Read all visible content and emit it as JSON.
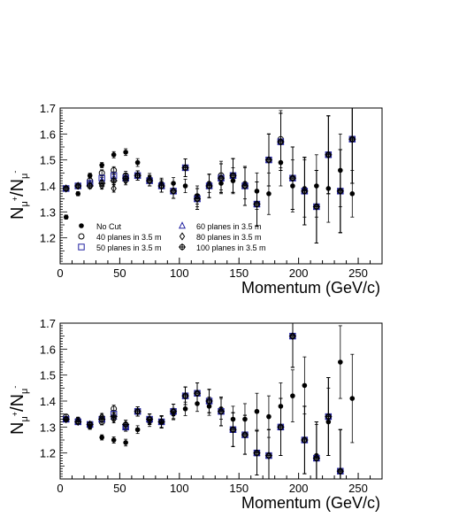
{
  "chart_data": [
    {
      "type": "scatter",
      "xlabel": "Momentum (GeV/c)",
      "ylabel_main": "N",
      "ylabel_sub1": "μ",
      "ylabel_sup": "+",
      "ylabel_slash": "/N",
      "ylabel_sub2": "μ",
      "ylabel_sup2": "-",
      "xlim": [
        0,
        270
      ],
      "ylim": [
        1.1,
        1.7
      ],
      "xticks": [
        0,
        50,
        100,
        150,
        200,
        250
      ],
      "yticks": [
        1.2,
        1.3,
        1.4,
        1.5,
        1.6,
        1.7
      ],
      "xtick_labels": [
        "0",
        "50",
        "100",
        "150",
        "200",
        "250"
      ],
      "ytick_labels": [
        "1.2",
        "1.3",
        "1.4",
        "1.5",
        "1.6",
        "1.7"
      ],
      "legend": [
        {
          "label": "No Cut",
          "marker": "dot"
        },
        {
          "label": "40 planes in 3.5 m",
          "marker": "circle"
        },
        {
          "label": "50 planes in 3.5 m",
          "marker": "square"
        },
        {
          "label": "60 planes in 3.5 m",
          "marker": "triangle"
        },
        {
          "label": "80 planes in 3.5 m",
          "marker": "diamond"
        },
        {
          "label": "100 planes in 3.5 m",
          "marker": "cross"
        }
      ],
      "series": [
        {
          "marker": "dot",
          "color": "#000000",
          "x": [
            5,
            15,
            25,
            35,
            45,
            55,
            65,
            75,
            85,
            95,
            105,
            115,
            125,
            135,
            145,
            155,
            165,
            175,
            185,
            195,
            205,
            215,
            225,
            235,
            245
          ],
          "y": [
            1.28,
            1.37,
            1.44,
            1.48,
            1.52,
            1.53,
            1.49,
            1.43,
            1.41,
            1.41,
            1.4,
            1.36,
            1.41,
            1.41,
            1.42,
            1.41,
            1.38,
            1.37,
            1.49,
            1.4,
            1.39,
            1.4,
            1.39,
            1.46,
            1.37
          ],
          "err": [
            0.008,
            0.008,
            0.009,
            0.01,
            0.012,
            0.013,
            0.015,
            0.018,
            0.02,
            0.022,
            0.026,
            0.03,
            0.035,
            0.04,
            0.05,
            0.06,
            0.07,
            0.08,
            0.09,
            0.1,
            0.11,
            0.12,
            0.13,
            0.14,
            0.09
          ]
        },
        {
          "marker": "circle",
          "color": "#000000",
          "x": [
            5,
            15,
            25,
            35,
            45,
            55,
            65,
            75,
            85,
            95,
            105,
            115,
            125,
            135,
            145,
            155,
            165,
            175,
            185,
            195,
            205,
            215,
            225,
            235,
            245
          ],
          "y": [
            1.39,
            1.4,
            1.42,
            1.45,
            1.46,
            1.44,
            1.44,
            1.42,
            1.4,
            1.38,
            1.47,
            1.36,
            1.4,
            1.44,
            1.44,
            1.4,
            1.33,
            1.5,
            1.58,
            1.43,
            1.38,
            1.32,
            1.52,
            1.38,
            1.58
          ],
          "err": [
            0.008,
            0.008,
            0.01,
            0.012,
            0.014,
            0.016,
            0.018,
            0.02,
            0.024,
            0.028,
            0.034,
            0.04,
            0.045,
            0.055,
            0.065,
            0.075,
            0.085,
            0.1,
            0.11,
            0.12,
            0.13,
            0.14,
            0.15,
            0.16,
            0.17
          ]
        },
        {
          "marker": "square",
          "color": "#1f1f9f",
          "x": [
            5,
            15,
            25,
            35,
            45,
            55,
            65,
            75,
            85,
            95,
            105,
            115,
            125,
            135,
            145,
            155,
            165,
            175,
            185,
            195,
            205,
            215,
            225,
            235,
            245
          ],
          "y": [
            1.39,
            1.4,
            1.41,
            1.43,
            1.44,
            1.43,
            1.44,
            1.42,
            1.4,
            1.38,
            1.47,
            1.35,
            1.4,
            1.43,
            1.44,
            1.4,
            1.33,
            1.5,
            1.57,
            1.43,
            1.38,
            1.32,
            1.52,
            1.38,
            1.58
          ],
          "err": [
            0.008,
            0.008,
            0.01,
            0.012,
            0.014,
            0.016,
            0.018,
            0.02,
            0.024,
            0.028,
            0.034,
            0.04,
            0.045,
            0.055,
            0.065,
            0.075,
            0.085,
            0.1,
            0.11,
            0.12,
            0.13,
            0.14,
            0.15,
            0.16,
            0.17
          ]
        },
        {
          "marker": "triangle",
          "color": "#1f1f9f",
          "x": [
            5,
            15,
            25,
            35,
            45,
            55,
            65,
            75,
            85,
            95,
            105,
            115,
            125,
            135,
            145,
            155,
            165,
            175,
            185,
            195,
            205,
            215,
            225,
            235,
            245
          ],
          "y": [
            1.39,
            1.4,
            1.41,
            1.42,
            1.43,
            1.43,
            1.44,
            1.42,
            1.4,
            1.38,
            1.47,
            1.35,
            1.4,
            1.43,
            1.44,
            1.4,
            1.33,
            1.5,
            1.57,
            1.43,
            1.38,
            1.32,
            1.52,
            1.38,
            1.58
          ],
          "err": [
            0.008,
            0.008,
            0.01,
            0.012,
            0.014,
            0.016,
            0.018,
            0.02,
            0.024,
            0.028,
            0.034,
            0.04,
            0.045,
            0.055,
            0.065,
            0.075,
            0.085,
            0.1,
            0.11,
            0.12,
            0.13,
            0.14,
            0.15,
            0.16,
            0.17
          ]
        },
        {
          "marker": "diamond",
          "color": "#000000",
          "x": [
            5,
            15,
            25,
            35,
            45,
            55,
            65,
            75,
            85,
            95,
            105,
            115,
            125,
            135,
            145,
            155,
            165,
            175,
            185,
            195,
            205,
            215,
            225,
            235,
            245
          ],
          "y": [
            1.39,
            1.4,
            1.4,
            1.4,
            1.39,
            1.42,
            1.44,
            1.42,
            1.4,
            1.38,
            1.47,
            1.35,
            1.4,
            1.43,
            1.44,
            1.4,
            1.33,
            1.5,
            1.57,
            1.43,
            1.38,
            1.32,
            1.52,
            1.38,
            1.58
          ],
          "err": [
            0.008,
            0.008,
            0.01,
            0.012,
            0.014,
            0.016,
            0.018,
            0.02,
            0.024,
            0.028,
            0.034,
            0.04,
            0.045,
            0.055,
            0.065,
            0.075,
            0.085,
            0.1,
            0.11,
            0.12,
            0.13,
            0.14,
            0.15,
            0.16,
            0.17
          ]
        },
        {
          "marker": "cross",
          "color": "#000000",
          "x": [
            5,
            15,
            25,
            35,
            45,
            55,
            65,
            75,
            85,
            95,
            105,
            115,
            125,
            135,
            145,
            155,
            165,
            175,
            185,
            195,
            205,
            215,
            225,
            235,
            245
          ],
          "y": [
            1.39,
            1.4,
            1.4,
            1.41,
            1.42,
            1.43,
            1.44,
            1.42,
            1.4,
            1.38,
            1.47,
            1.35,
            1.4,
            1.43,
            1.44,
            1.4,
            1.33,
            1.5,
            1.57,
            1.43,
            1.38,
            1.32,
            1.52,
            1.38,
            1.58
          ],
          "err": [
            0.008,
            0.008,
            0.01,
            0.012,
            0.014,
            0.016,
            0.018,
            0.02,
            0.024,
            0.028,
            0.034,
            0.04,
            0.045,
            0.055,
            0.065,
            0.075,
            0.085,
            0.1,
            0.11,
            0.12,
            0.13,
            0.14,
            0.15,
            0.16,
            0.17
          ]
        }
      ]
    },
    {
      "type": "scatter",
      "xlabel": "Momentum (GeV/c)",
      "ylabel_main": "N",
      "ylabel_sub1": "μ",
      "ylabel_sup": "+",
      "ylabel_slash": "/N",
      "ylabel_sub2": "μ",
      "ylabel_sup2": "-",
      "xlim": [
        0,
        270
      ],
      "ylim": [
        1.1,
        1.7
      ],
      "xticks": [
        0,
        50,
        100,
        150,
        200,
        250
      ],
      "yticks": [
        1.2,
        1.3,
        1.4,
        1.5,
        1.6,
        1.7
      ],
      "xtick_labels": [
        "0",
        "50",
        "100",
        "150",
        "200",
        "250"
      ],
      "ytick_labels": [
        "1.2",
        "1.3",
        "1.4",
        "1.5",
        "1.6",
        "1.7"
      ],
      "series": [
        {
          "marker": "dot",
          "color": "#000000",
          "x": [
            5,
            15,
            25,
            35,
            45,
            55,
            65,
            75,
            85,
            95,
            105,
            115,
            125,
            135,
            145,
            155,
            165,
            175,
            185,
            195,
            205,
            215,
            225,
            235,
            245
          ],
          "y": [
            1.33,
            1.33,
            1.3,
            1.26,
            1.25,
            1.24,
            1.29,
            1.32,
            1.32,
            1.35,
            1.37,
            1.39,
            1.38,
            1.37,
            1.33,
            1.33,
            1.36,
            1.34,
            1.38,
            1.42,
            1.46,
            1.19,
            1.32,
            1.55,
            1.41
          ],
          "err": [
            0.008,
            0.008,
            0.009,
            0.01,
            0.012,
            0.013,
            0.015,
            0.018,
            0.02,
            0.022,
            0.026,
            0.03,
            0.035,
            0.04,
            0.05,
            0.06,
            0.07,
            0.08,
            0.09,
            0.1,
            0.11,
            0.12,
            0.13,
            0.14,
            0.17
          ]
        },
        {
          "marker": "circle",
          "color": "#000000",
          "x": [
            5,
            15,
            25,
            35,
            45,
            55,
            65,
            75,
            85,
            95,
            105,
            115,
            125,
            135,
            145,
            155,
            165,
            175,
            185,
            195,
            205,
            215,
            225,
            235
          ],
          "y": [
            1.34,
            1.32,
            1.31,
            1.32,
            1.37,
            1.3,
            1.36,
            1.33,
            1.32,
            1.36,
            1.42,
            1.43,
            1.4,
            1.36,
            1.29,
            1.27,
            1.2,
            1.19,
            1.3,
            1.65,
            1.25,
            1.18,
            1.34,
            1.13
          ],
          "err": [
            0.008,
            0.008,
            0.01,
            0.012,
            0.014,
            0.016,
            0.018,
            0.02,
            0.024,
            0.028,
            0.034,
            0.04,
            0.045,
            0.055,
            0.065,
            0.075,
            0.085,
            0.1,
            0.11,
            0.12,
            0.13,
            0.14,
            0.15,
            0.16
          ]
        },
        {
          "marker": "square",
          "color": "#1f1f9f",
          "x": [
            5,
            15,
            25,
            35,
            45,
            55,
            65,
            75,
            85,
            95,
            105,
            115,
            125,
            135,
            145,
            155,
            165,
            175,
            185,
            195,
            205,
            215,
            225,
            235
          ],
          "y": [
            1.33,
            1.32,
            1.31,
            1.33,
            1.35,
            1.3,
            1.36,
            1.33,
            1.32,
            1.36,
            1.42,
            1.43,
            1.4,
            1.36,
            1.29,
            1.27,
            1.2,
            1.19,
            1.3,
            1.65,
            1.25,
            1.18,
            1.34,
            1.13
          ],
          "err": [
            0.008,
            0.008,
            0.01,
            0.012,
            0.014,
            0.016,
            0.018,
            0.02,
            0.024,
            0.028,
            0.034,
            0.04,
            0.045,
            0.055,
            0.065,
            0.075,
            0.085,
            0.1,
            0.11,
            0.12,
            0.13,
            0.14,
            0.15,
            0.16
          ]
        },
        {
          "marker": "triangle",
          "color": "#1f1f9f",
          "x": [
            5,
            15,
            25,
            35,
            45,
            55,
            65,
            75,
            85,
            95,
            105,
            115,
            125,
            135,
            145,
            155,
            165,
            175,
            185,
            195,
            205,
            215,
            225,
            235
          ],
          "y": [
            1.33,
            1.32,
            1.31,
            1.33,
            1.34,
            1.3,
            1.36,
            1.33,
            1.32,
            1.36,
            1.42,
            1.43,
            1.4,
            1.36,
            1.29,
            1.27,
            1.2,
            1.19,
            1.3,
            1.65,
            1.25,
            1.18,
            1.34,
            1.13
          ],
          "err": [
            0.008,
            0.008,
            0.01,
            0.012,
            0.014,
            0.016,
            0.018,
            0.02,
            0.024,
            0.028,
            0.034,
            0.04,
            0.045,
            0.055,
            0.065,
            0.075,
            0.085,
            0.1,
            0.11,
            0.12,
            0.13,
            0.14,
            0.15,
            0.16
          ]
        },
        {
          "marker": "diamond",
          "color": "#000000",
          "x": [
            5,
            15,
            25,
            35,
            45,
            55,
            65,
            75,
            85,
            95,
            105,
            115,
            125,
            135,
            145,
            155,
            165,
            175,
            185,
            195,
            205,
            215,
            225,
            235
          ],
          "y": [
            1.33,
            1.32,
            1.31,
            1.34,
            1.33,
            1.31,
            1.36,
            1.33,
            1.32,
            1.36,
            1.42,
            1.43,
            1.4,
            1.36,
            1.29,
            1.27,
            1.2,
            1.19,
            1.3,
            1.65,
            1.25,
            1.18,
            1.34,
            1.13
          ],
          "err": [
            0.008,
            0.008,
            0.01,
            0.012,
            0.014,
            0.016,
            0.018,
            0.02,
            0.024,
            0.028,
            0.034,
            0.04,
            0.045,
            0.055,
            0.065,
            0.075,
            0.085,
            0.1,
            0.11,
            0.12,
            0.13,
            0.14,
            0.15,
            0.16
          ]
        },
        {
          "marker": "cross",
          "color": "#000000",
          "x": [
            5,
            15,
            25,
            35,
            45,
            55,
            65,
            75,
            85,
            95,
            105,
            115,
            125,
            135,
            145,
            155,
            165,
            175,
            185,
            195,
            205,
            215,
            225,
            235
          ],
          "y": [
            1.33,
            1.32,
            1.31,
            1.33,
            1.34,
            1.31,
            1.36,
            1.33,
            1.32,
            1.36,
            1.42,
            1.43,
            1.4,
            1.36,
            1.29,
            1.27,
            1.2,
            1.19,
            1.3,
            1.65,
            1.25,
            1.18,
            1.34,
            1.13
          ],
          "err": [
            0.008,
            0.008,
            0.01,
            0.012,
            0.014,
            0.016,
            0.018,
            0.02,
            0.024,
            0.028,
            0.034,
            0.04,
            0.045,
            0.055,
            0.065,
            0.075,
            0.085,
            0.1,
            0.11,
            0.12,
            0.13,
            0.14,
            0.15,
            0.16
          ]
        }
      ]
    }
  ]
}
